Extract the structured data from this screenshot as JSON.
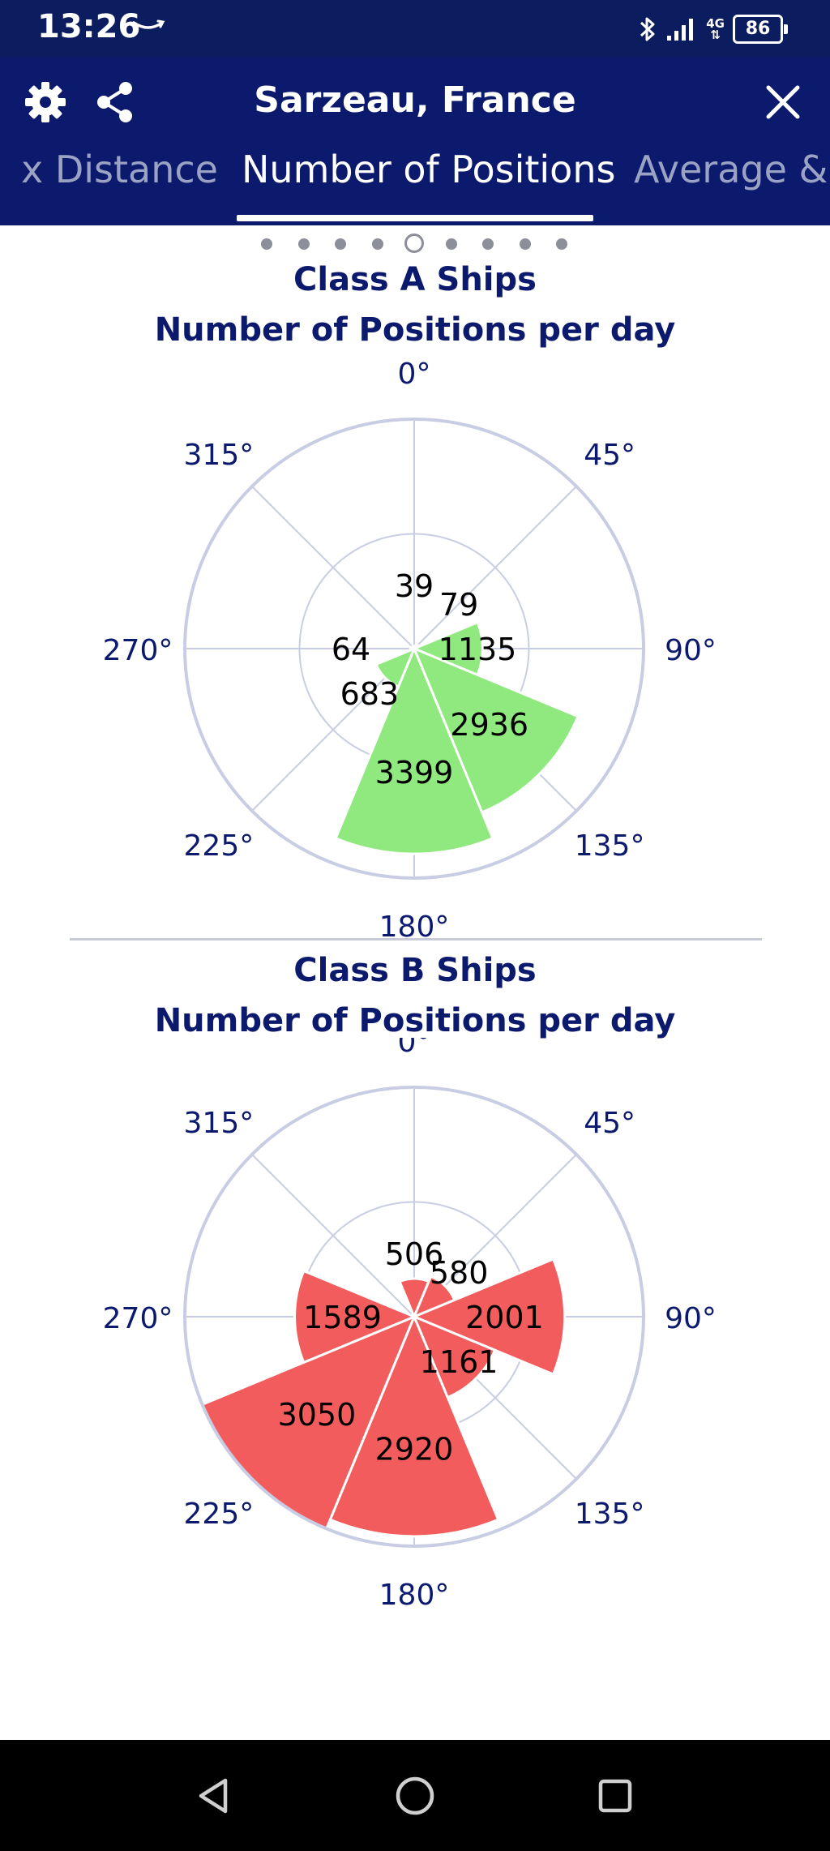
{
  "status_bar": {
    "time": "13:26",
    "battery": "86",
    "network": "4G"
  },
  "header": {
    "title": "Sarzeau, France",
    "icons": [
      "gear-icon",
      "share-icon",
      "close-icon"
    ],
    "tabs": [
      {
        "label": "x Distance",
        "active": false
      },
      {
        "label": "Number of Positions",
        "active": true
      },
      {
        "label": "Average &",
        "active": false
      }
    ]
  },
  "pager": {
    "count": 9,
    "current": 4
  },
  "charts": [
    {
      "title": "Class A Ships",
      "subtitle": "Number of Positions per day",
      "color": "#90e97e",
      "chart_data": {
        "type": "polar-bar",
        "angle_labels": [
          "0°",
          "45°",
          "90°",
          "135°",
          "180°",
          "225°",
          "270°",
          "315°"
        ],
        "categories": [
          "0°",
          "45°",
          "90°",
          "135°",
          "180°",
          "225°",
          "270°",
          "315°"
        ],
        "values": [
          39,
          79,
          1135,
          2936,
          3399,
          683,
          64,
          39
        ],
        "labels": [
          "39",
          "79",
          "1135",
          "2936",
          "3399",
          "683",
          "64",
          ""
        ],
        "rmax": 3800
      }
    },
    {
      "title": "Class B Ships",
      "subtitle": "Number of Positions per day",
      "color": "#f25c5c",
      "chart_data": {
        "type": "polar-bar",
        "angle_labels": [
          "0°",
          "45°",
          "90°",
          "135°",
          "180°",
          "225°",
          "270°",
          "315°"
        ],
        "categories": [
          "0°",
          "45°",
          "90°",
          "135°",
          "180°",
          "225°",
          "270°",
          "315°"
        ],
        "values": [
          506,
          580,
          2001,
          1161,
          2920,
          3050,
          1589,
          0
        ],
        "labels": [
          "506",
          "580",
          "2001",
          "1161",
          "2920",
          "3050",
          "1589",
          ""
        ],
        "rmax": 3050
      }
    }
  ],
  "nav": {
    "buttons": [
      "back-icon",
      "home-icon",
      "recents-icon"
    ]
  }
}
